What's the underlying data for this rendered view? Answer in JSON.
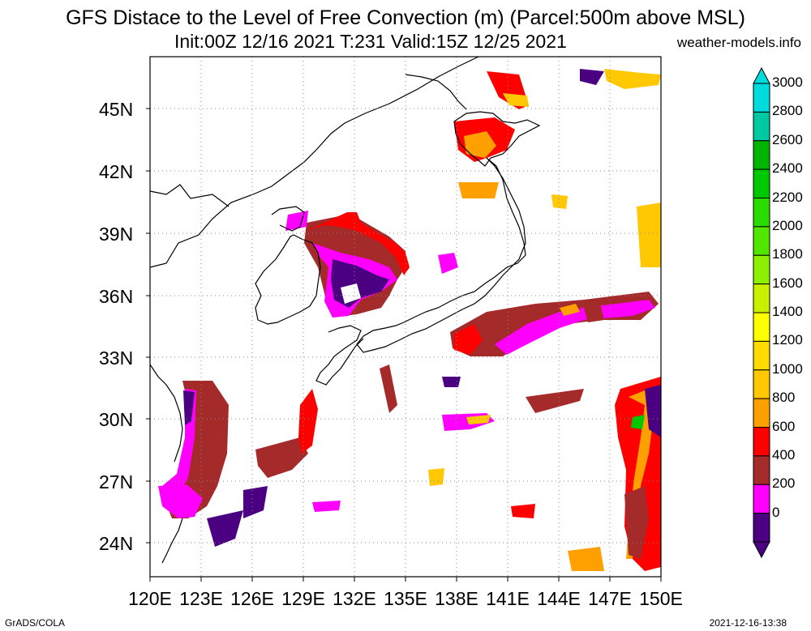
{
  "title": {
    "line1": "GFS Distace to the Level of Free Convection (m) (Parcel:500m above MSL)",
    "line2": "Init:00Z 12/16 2021 T:231 Valid:15Z 12/25 2021",
    "site": "weather-models.info"
  },
  "axes": {
    "lat_labels": [
      "45N",
      "42N",
      "39N",
      "36N",
      "33N",
      "30N",
      "27N",
      "24N"
    ],
    "lon_labels": [
      "120E",
      "123E",
      "126E",
      "129E",
      "132E",
      "135E",
      "138E",
      "141E",
      "144E",
      "147E",
      "150E"
    ]
  },
  "colorbar": {
    "labels": [
      "3000",
      "2800",
      "2600",
      "2400",
      "2200",
      "2000",
      "1800",
      "1600",
      "1400",
      "1200",
      "1000",
      "800",
      "600",
      "400",
      "200",
      "0"
    ],
    "colors": [
      "#00dcdc",
      "#00c8a0",
      "#00b400",
      "#00c800",
      "#28dc00",
      "#50e600",
      "#8cf000",
      "#c8f000",
      "#ffff00",
      "#ffdc00",
      "#ffc800",
      "#ffa000",
      "#ff0000",
      "#a52a2a",
      "#ff00ff",
      "#4b0082"
    ]
  },
  "footer": {
    "left": "GrADS/COLA",
    "right": "2021-12-16-13:38"
  }
}
